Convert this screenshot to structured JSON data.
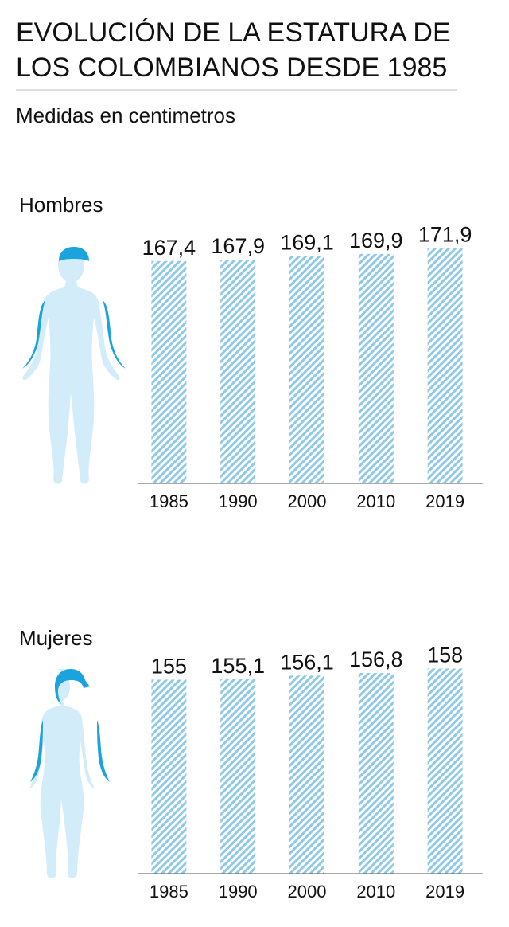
{
  "title": [
    "EVOLUCIÓN DE LA ESTATURA DE",
    "LOS COLOMBIANOS DESDE 1985"
  ],
  "subtitle": "Medidas en centimetros",
  "chart_data": [
    {
      "type": "bar",
      "title": "Hombres",
      "categories": [
        "1985",
        "1990",
        "2000",
        "2010",
        "2019"
      ],
      "values": [
        167.4,
        167.9,
        169.1,
        169.9,
        171.9
      ],
      "value_labels": [
        "167,4",
        "167,9",
        "169,1",
        "169,9",
        "171,9"
      ],
      "color": "#8ec9e8",
      "ylim": [
        89,
        178
      ]
    },
    {
      "type": "bar",
      "title": "Mujeres",
      "categories": [
        "1985",
        "1990",
        "2000",
        "2010",
        "2019"
      ],
      "values": [
        155,
        155.1,
        156.1,
        156.8,
        158
      ],
      "value_labels": [
        "155",
        "155,1",
        "156,1",
        "156,8",
        "158"
      ],
      "color": "#8ec9e8",
      "ylim": [
        103,
        160
      ]
    }
  ]
}
